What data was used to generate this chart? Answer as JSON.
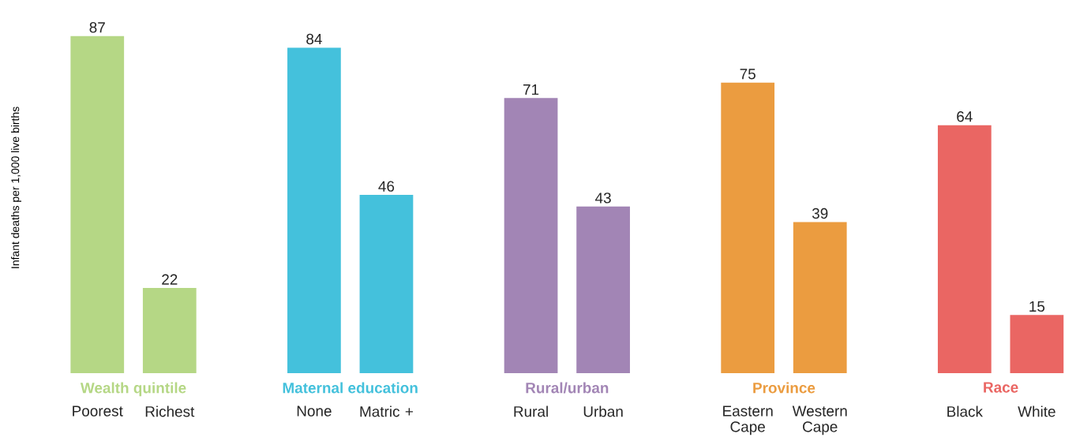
{
  "chart_data": {
    "type": "bar",
    "ylabel": "Infant deaths per 1,000 live births",
    "data_labels": true,
    "categories": [
      "Poorest",
      "Richest",
      null,
      "None",
      "Matric +",
      null,
      "Rural",
      "Urban",
      null,
      "Eastern Cape",
      "Western Cape",
      null,
      "Black",
      "White"
    ],
    "series": [
      {
        "name": "Wealth quintile",
        "color": "#b5d785",
        "values": [
          87,
          22,
          null,
          null,
          null,
          null,
          null,
          null,
          null,
          null,
          null,
          null,
          null,
          null
        ]
      },
      {
        "name": "Maternal education",
        "color": "#44c1dc",
        "values": [
          null,
          null,
          null,
          84,
          46,
          null,
          null,
          null,
          null,
          null,
          null,
          null,
          null,
          null
        ]
      },
      {
        "name": "Rural/urban",
        "color": "#a285b5",
        "values": [
          null,
          null,
          null,
          null,
          null,
          null,
          71,
          43,
          null,
          null,
          null,
          null,
          null,
          null
        ]
      },
      {
        "name": "Province",
        "color": "#eb9c40",
        "values": [
          null,
          null,
          null,
          null,
          null,
          null,
          null,
          null,
          null,
          75,
          39,
          null,
          null,
          null
        ]
      },
      {
        "name": "Race",
        "color": "#ea6663",
        "values": [
          null,
          null,
          null,
          null,
          null,
          null,
          null,
          null,
          null,
          null,
          null,
          null,
          64,
          15
        ]
      }
    ]
  }
}
